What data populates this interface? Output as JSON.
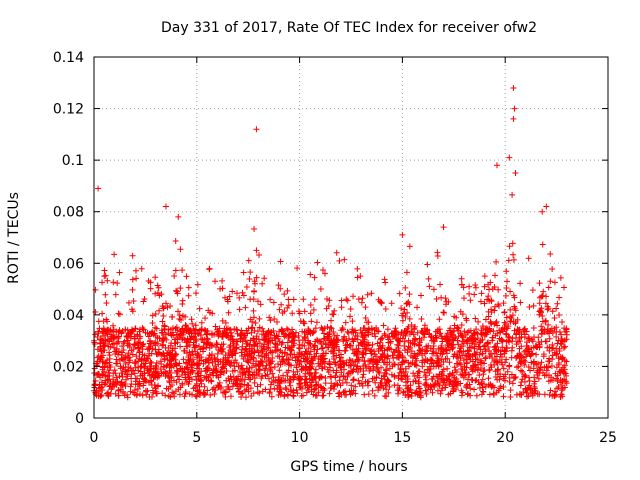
{
  "chart_data": {
    "type": "scatter",
    "title": "Day 331 of 2017, Rate Of TEC Index for receiver ofw2",
    "xlabel": "GPS time / hours",
    "ylabel": "ROTI / TECUs",
    "xlim": [
      0,
      25
    ],
    "ylim": [
      0,
      0.14
    ],
    "x_ticks": [
      "0",
      "5",
      "10",
      "15",
      "20",
      "25"
    ],
    "y_ticks": [
      "0",
      "0.02",
      "0.04",
      "0.06",
      "0.08",
      "0.1",
      "0.12",
      "0.14"
    ],
    "grid": true,
    "marker": "+",
    "color": "#ff0000",
    "data_range_hours": [
      0,
      23
    ],
    "baseline_band": [
      0.008,
      0.035
    ],
    "notable_points": [
      {
        "x": 0.2,
        "y": 0.089
      },
      {
        "x": 0.5,
        "y": 0.055
      },
      {
        "x": 3.5,
        "y": 0.082
      },
      {
        "x": 4.1,
        "y": 0.078
      },
      {
        "x": 7.9,
        "y": 0.112
      },
      {
        "x": 7.9,
        "y": 0.065
      },
      {
        "x": 15.0,
        "y": 0.071
      },
      {
        "x": 17.0,
        "y": 0.074
      },
      {
        "x": 19.6,
        "y": 0.098
      },
      {
        "x": 20.2,
        "y": 0.101
      },
      {
        "x": 20.4,
        "y": 0.128
      },
      {
        "x": 20.45,
        "y": 0.12
      },
      {
        "x": 20.4,
        "y": 0.116
      },
      {
        "x": 20.5,
        "y": 0.095
      },
      {
        "x": 22.0,
        "y": 0.082
      },
      {
        "x": 21.8,
        "y": 0.08
      }
    ],
    "activity_peaks": [
      {
        "x": 3.3,
        "height": 0.065
      },
      {
        "x": 4.2,
        "height": 0.07
      },
      {
        "x": 7.8,
        "height": 0.058
      },
      {
        "x": 11.5,
        "height": 0.062
      },
      {
        "x": 15.2,
        "height": 0.055
      },
      {
        "x": 19.3,
        "height": 0.07
      },
      {
        "x": 20.3,
        "height": 0.09
      },
      {
        "x": 21.9,
        "height": 0.075
      }
    ]
  }
}
